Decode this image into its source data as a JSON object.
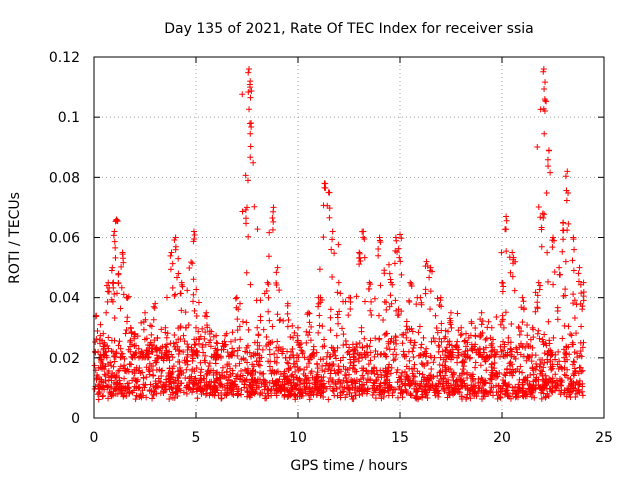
{
  "chart_data": {
    "type": "scatter",
    "title": "Day 135 of 2021, Rate Of TEC Index for receiver ssia",
    "xlabel": "GPS time / hours",
    "ylabel": "ROTI / TECUs",
    "xlim": [
      0,
      25
    ],
    "ylim": [
      0,
      0.12
    ],
    "xticks": [
      0,
      5,
      10,
      15,
      20,
      25
    ],
    "xtick_labels": [
      "0",
      "5",
      "10",
      "15",
      "20",
      "25"
    ],
    "yticks": [
      0,
      0.02,
      0.04,
      0.06,
      0.08,
      0.1,
      0.12
    ],
    "ytick_labels": [
      "0",
      "0.02",
      "0.04",
      "0.06",
      "0.08",
      "0.1",
      "0.12"
    ],
    "grid": true,
    "marker": "+",
    "color": "#ff0000",
    "series": [
      {
        "name": "ROTI",
        "x": [
          0.1,
          0.3,
          0.5,
          0.7,
          0.9,
          1.0,
          1.1,
          1.2,
          1.4,
          1.6,
          1.8,
          2.0,
          2.5,
          3.0,
          3.5,
          3.8,
          4.0,
          4.3,
          4.5,
          4.9,
          5.0,
          5.5,
          6.0,
          6.5,
          7.0,
          7.5,
          7.6,
          7.65,
          7.7,
          8.0,
          8.5,
          8.8,
          9.0,
          9.5,
          10.0,
          10.5,
          11.0,
          11.3,
          11.5,
          11.7,
          12.0,
          12.5,
          13.0,
          13.2,
          13.5,
          14.0,
          14.5,
          14.8,
          15.0,
          15.5,
          16.0,
          16.3,
          16.5,
          17.0,
          17.5,
          18.0,
          18.5,
          19.0,
          19.5,
          20.0,
          20.2,
          20.5,
          21.0,
          21.5,
          21.8,
          22.0,
          22.05,
          22.1,
          22.3,
          22.5,
          22.8,
          23.0,
          23.2,
          23.5,
          23.8,
          24.0
        ],
        "y": [
          0.034,
          0.02,
          0.025,
          0.045,
          0.05,
          0.062,
          0.066,
          0.048,
          0.055,
          0.04,
          0.03,
          0.028,
          0.035,
          0.038,
          0.03,
          0.055,
          0.06,
          0.045,
          0.03,
          0.062,
          0.03,
          0.035,
          0.025,
          0.028,
          0.04,
          0.07,
          0.116,
          0.11,
          0.098,
          0.03,
          0.045,
          0.07,
          0.05,
          0.038,
          0.03,
          0.035,
          0.04,
          0.078,
          0.075,
          0.062,
          0.045,
          0.04,
          0.055,
          0.062,
          0.045,
          0.06,
          0.048,
          0.06,
          0.061,
          0.045,
          0.04,
          0.052,
          0.05,
          0.04,
          0.035,
          0.03,
          0.032,
          0.035,
          0.03,
          0.045,
          0.067,
          0.055,
          0.04,
          0.03,
          0.045,
          0.068,
          0.116,
          0.106,
          0.089,
          0.06,
          0.05,
          0.065,
          0.082,
          0.06,
          0.05,
          0.045
        ]
      }
    ]
  }
}
